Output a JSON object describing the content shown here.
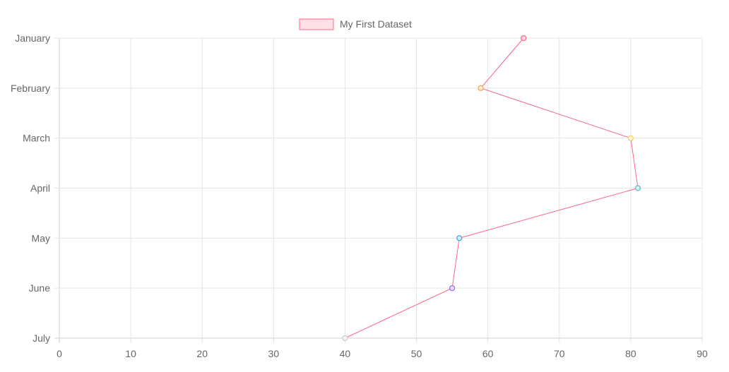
{
  "chart_data": {
    "type": "line",
    "index_axis": "y",
    "legend": {
      "position": "top",
      "entries": [
        "My First Dataset"
      ]
    },
    "categories": [
      "January",
      "February",
      "March",
      "April",
      "May",
      "June",
      "July"
    ],
    "xlim": [
      0,
      90
    ],
    "x_ticks": [
      "0",
      "10",
      "20",
      "30",
      "40",
      "50",
      "60",
      "70",
      "80",
      "90"
    ],
    "grid": true,
    "series": [
      {
        "name": "My First Dataset",
        "values": [
          65,
          59,
          80,
          81,
          56,
          55,
          40
        ],
        "line_color": "#ff6384",
        "legend_fill": "#ffe0e6",
        "point_colors": [
          "#ff6384",
          "#ff9f40",
          "#ffcd56",
          "#4bc0c0",
          "#36a2eb",
          "#9966ff",
          "#c9cbcf"
        ],
        "point_fills": [
          "#ffe0e6",
          "#ffecd9",
          "#fff5dd",
          "#dbf2f2",
          "#d7ecfb",
          "#ebe0ff",
          "#f4f5f5"
        ]
      }
    ]
  }
}
